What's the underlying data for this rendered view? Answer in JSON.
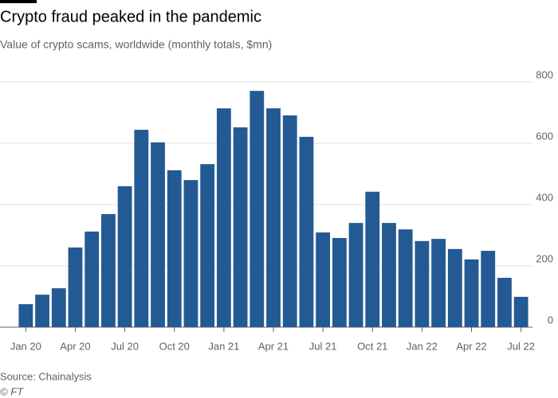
{
  "chart_data": {
    "type": "bar",
    "title": "Crypto fraud peaked in the pandemic",
    "subtitle": "Value of crypto scams, worldwide (monthly totals, $mn)",
    "source": "Source: Chainalysis",
    "credit": "© FT",
    "categories": [
      "Jan 20",
      null,
      null,
      "Apr 20",
      null,
      null,
      "Jul 20",
      null,
      null,
      "Oct 20",
      null,
      null,
      "Jan 21",
      null,
      null,
      "Apr 21",
      null,
      null,
      "Jul 21",
      null,
      null,
      "Oct 21",
      null,
      null,
      "Jan 22",
      null,
      null,
      "Apr 22",
      null,
      null,
      "Jul 22"
    ],
    "values": [
      75,
      106,
      127,
      260,
      312,
      369,
      460,
      644,
      603,
      512,
      480,
      532,
      714,
      652,
      771,
      714,
      691,
      621,
      309,
      291,
      340,
      442,
      340,
      319,
      281,
      288,
      255,
      221,
      249,
      161,
      99
    ],
    "color": "#245a93",
    "ylim": [
      0,
      800
    ],
    "yticks": [
      0,
      200,
      400,
      600,
      800
    ],
    "grid": true
  }
}
